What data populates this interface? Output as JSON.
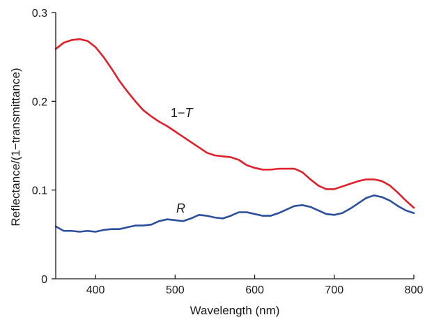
{
  "chart_data": {
    "type": "line",
    "xlabel": "Wavelength (nm)",
    "ylabel": "Reflectance/(1−transmittance)",
    "xlim": [
      350,
      800
    ],
    "ylim": [
      0,
      0.3
    ],
    "x_ticks": [
      400,
      500,
      600,
      700,
      800
    ],
    "x_tick_labels": [
      "400",
      "500",
      "600",
      "700",
      "800"
    ],
    "y_ticks": [
      0,
      0.1,
      0.2,
      0.3
    ],
    "y_tick_labels": [
      "0",
      "0.1",
      "0.2",
      "0.3"
    ],
    "grid": false,
    "series": [
      {
        "label_prefix": "1−",
        "label_italic": "T",
        "color": "#e0202a",
        "points": [
          [
            350,
            0.259
          ],
          [
            360,
            0.266
          ],
          [
            370,
            0.269
          ],
          [
            380,
            0.27
          ],
          [
            390,
            0.268
          ],
          [
            400,
            0.261
          ],
          [
            410,
            0.25
          ],
          [
            420,
            0.237
          ],
          [
            430,
            0.223
          ],
          [
            440,
            0.211
          ],
          [
            450,
            0.2
          ],
          [
            460,
            0.19
          ],
          [
            470,
            0.183
          ],
          [
            480,
            0.177
          ],
          [
            490,
            0.172
          ],
          [
            500,
            0.166
          ],
          [
            510,
            0.16
          ],
          [
            520,
            0.154
          ],
          [
            530,
            0.148
          ],
          [
            540,
            0.142
          ],
          [
            550,
            0.139
          ],
          [
            560,
            0.138
          ],
          [
            570,
            0.137
          ],
          [
            580,
            0.134
          ],
          [
            590,
            0.128
          ],
          [
            600,
            0.125
          ],
          [
            610,
            0.123
          ],
          [
            620,
            0.123
          ],
          [
            630,
            0.124
          ],
          [
            640,
            0.124
          ],
          [
            650,
            0.124
          ],
          [
            660,
            0.12
          ],
          [
            670,
            0.112
          ],
          [
            680,
            0.105
          ],
          [
            690,
            0.101
          ],
          [
            700,
            0.101
          ],
          [
            710,
            0.104
          ],
          [
            720,
            0.107
          ],
          [
            730,
            0.11
          ],
          [
            740,
            0.112
          ],
          [
            750,
            0.112
          ],
          [
            760,
            0.11
          ],
          [
            770,
            0.105
          ],
          [
            780,
            0.097
          ],
          [
            790,
            0.088
          ],
          [
            800,
            0.08
          ]
        ]
      },
      {
        "label_prefix": "",
        "label_italic": "R",
        "color": "#2a4f9c",
        "points": [
          [
            350,
            0.059
          ],
          [
            360,
            0.054
          ],
          [
            370,
            0.054
          ],
          [
            380,
            0.053
          ],
          [
            390,
            0.054
          ],
          [
            400,
            0.053
          ],
          [
            410,
            0.055
          ],
          [
            420,
            0.056
          ],
          [
            430,
            0.056
          ],
          [
            440,
            0.058
          ],
          [
            450,
            0.06
          ],
          [
            460,
            0.06
          ],
          [
            470,
            0.061
          ],
          [
            480,
            0.065
          ],
          [
            490,
            0.067
          ],
          [
            500,
            0.066
          ],
          [
            510,
            0.065
          ],
          [
            520,
            0.068
          ],
          [
            530,
            0.072
          ],
          [
            540,
            0.071
          ],
          [
            550,
            0.069
          ],
          [
            560,
            0.068
          ],
          [
            570,
            0.071
          ],
          [
            580,
            0.075
          ],
          [
            590,
            0.075
          ],
          [
            600,
            0.073
          ],
          [
            610,
            0.071
          ],
          [
            620,
            0.071
          ],
          [
            630,
            0.074
          ],
          [
            640,
            0.078
          ],
          [
            650,
            0.082
          ],
          [
            660,
            0.083
          ],
          [
            670,
            0.081
          ],
          [
            680,
            0.077
          ],
          [
            690,
            0.073
          ],
          [
            700,
            0.072
          ],
          [
            710,
            0.074
          ],
          [
            720,
            0.079
          ],
          [
            730,
            0.085
          ],
          [
            740,
            0.091
          ],
          [
            750,
            0.094
          ],
          [
            760,
            0.092
          ],
          [
            770,
            0.088
          ],
          [
            780,
            0.082
          ],
          [
            790,
            0.077
          ],
          [
            800,
            0.074
          ]
        ]
      }
    ]
  }
}
